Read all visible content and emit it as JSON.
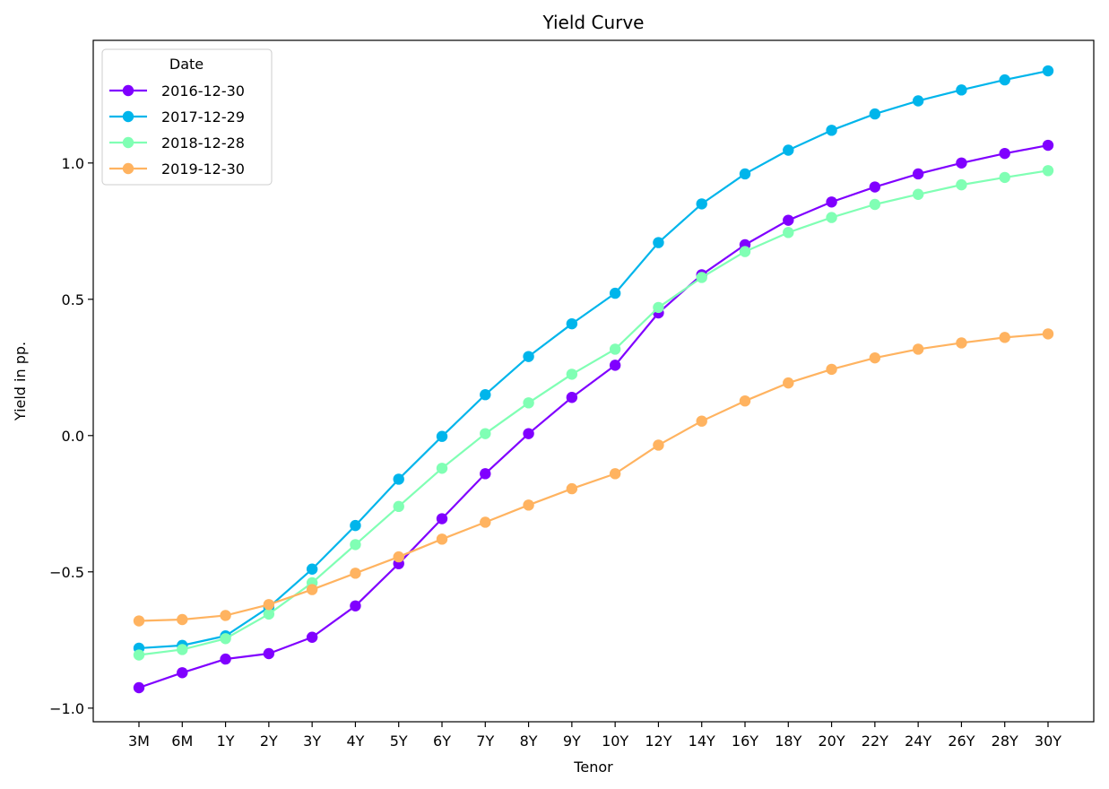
{
  "chart_data": {
    "type": "line",
    "title": "Yield Curve",
    "xlabel": "Tenor",
    "ylabel": "Yield in pp.",
    "categories": [
      "3M",
      "6M",
      "1Y",
      "2Y",
      "3Y",
      "4Y",
      "5Y",
      "6Y",
      "7Y",
      "8Y",
      "9Y",
      "10Y",
      "12Y",
      "14Y",
      "16Y",
      "18Y",
      "20Y",
      "22Y",
      "24Y",
      "26Y",
      "28Y",
      "30Y"
    ],
    "ylim": [
      -1.05,
      1.45
    ],
    "yticks": [
      -1.0,
      -0.5,
      0.0,
      0.5,
      1.0
    ],
    "ytick_labels": [
      "−1.0",
      "−0.5",
      "0.0",
      "0.5",
      "1.0"
    ],
    "grid": false,
    "legend": {
      "title": "Date",
      "placement": "upper-left"
    },
    "series": [
      {
        "name": "2016-12-30",
        "color": "#8000ff",
        "values": [
          -0.925,
          -0.87,
          -0.82,
          -0.8,
          -0.74,
          -0.625,
          -0.47,
          -0.305,
          -0.14,
          0.007,
          0.14,
          0.258,
          0.45,
          0.59,
          0.7,
          0.79,
          0.857,
          0.912,
          0.96,
          1.0,
          1.035,
          1.065
        ]
      },
      {
        "name": "2017-12-29",
        "color": "#00b5eb",
        "values": [
          -0.78,
          -0.77,
          -0.735,
          -0.63,
          -0.49,
          -0.33,
          -0.16,
          -0.003,
          0.15,
          0.29,
          0.41,
          0.522,
          0.708,
          0.85,
          0.96,
          1.047,
          1.12,
          1.18,
          1.228,
          1.268,
          1.305,
          1.338
        ]
      },
      {
        "name": "2018-12-28",
        "color": "#80ffb4",
        "values": [
          -0.805,
          -0.785,
          -0.745,
          -0.655,
          -0.54,
          -0.4,
          -0.26,
          -0.12,
          0.007,
          0.12,
          0.225,
          0.317,
          0.47,
          0.58,
          0.675,
          0.745,
          0.8,
          0.848,
          0.885,
          0.92,
          0.947,
          0.972
        ]
      },
      {
        "name": "2019-12-30",
        "color": "#ffb360",
        "values": [
          -0.68,
          -0.675,
          -0.66,
          -0.62,
          -0.565,
          -0.505,
          -0.445,
          -0.38,
          -0.318,
          -0.255,
          -0.195,
          -0.14,
          -0.035,
          0.053,
          0.127,
          0.193,
          0.243,
          0.285,
          0.317,
          0.34,
          0.36,
          0.373
        ]
      }
    ]
  }
}
